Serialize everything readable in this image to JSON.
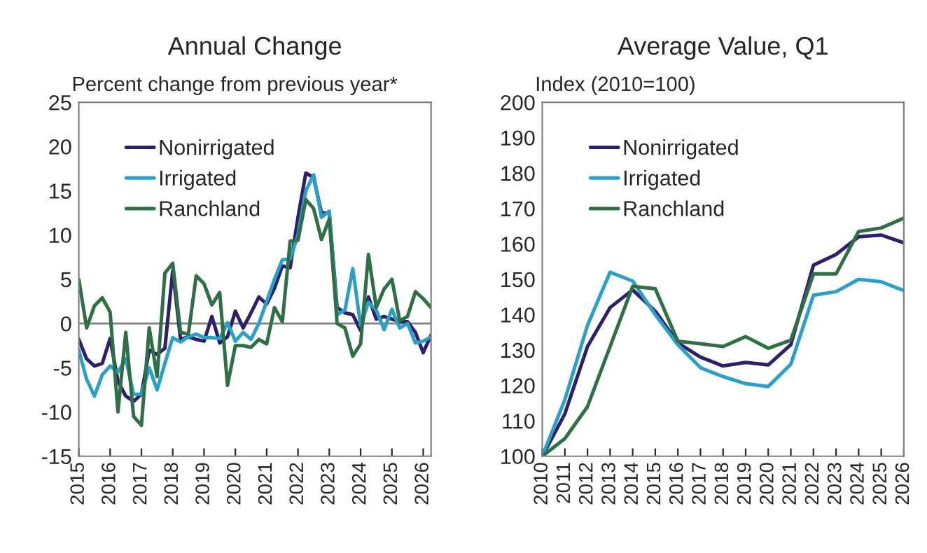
{
  "chart_data": [
    {
      "type": "line",
      "title": "Annual Change",
      "ylabel": "Percent change from previous year*",
      "x": [
        2015.0,
        2015.25,
        2015.5,
        2015.75,
        2016.0,
        2016.25,
        2016.5,
        2016.75,
        2017.0,
        2017.25,
        2017.5,
        2017.75,
        2018.0,
        2018.25,
        2018.5,
        2018.75,
        2019.0,
        2019.25,
        2019.5,
        2019.75,
        2020.0,
        2020.25,
        2020.5,
        2020.75,
        2021.0,
        2021.25,
        2021.5,
        2021.75,
        2022.0,
        2022.25,
        2022.5,
        2022.75,
        2023.0,
        2023.25,
        2023.5,
        2023.75,
        2024.0,
        2024.25,
        2024.5,
        2024.75,
        2025.0,
        2025.25,
        2025.5,
        2025.75,
        2026.0,
        2026.25
      ],
      "series": [
        {
          "name": "Nonirrigated",
          "color": "#2e1f6e",
          "values": [
            -1.8,
            -4.0,
            -4.8,
            -4.5,
            -1.7,
            -6.5,
            -8.2,
            -8.8,
            -8.0,
            -3.0,
            -3.5,
            -2.8,
            6.0,
            -1.8,
            -1.5,
            -1.8,
            -2.0,
            0.8,
            -2.2,
            -1.5,
            1.4,
            -0.5,
            1.2,
            3.0,
            2.2,
            4.0,
            6.5,
            6.3,
            12.0,
            17.0,
            16.5,
            12.5,
            12.5,
            1.8,
            1.2,
            1.0,
            -0.8,
            3.0,
            0.5,
            0.8,
            0.5,
            0.2,
            0.2,
            -1.0,
            -3.3,
            -1.3
          ]
        },
        {
          "name": "Irrigated",
          "color": "#2aa0c8",
          "values": [
            -3.0,
            -6.3,
            -8.2,
            -5.8,
            -4.8,
            -5.5,
            -4.0,
            -8.0,
            -8.0,
            -5.0,
            -7.5,
            -4.5,
            -1.6,
            -2.1,
            -1.5,
            -1.2,
            -1.6,
            -1.6,
            -1.7,
            0.1,
            -2.0,
            -1.0,
            -1.8,
            0.0,
            2.5,
            5.0,
            7.2,
            7.3,
            10.0,
            15.0,
            16.8,
            12.0,
            12.7,
            1.0,
            1.5,
            6.2,
            -0.2,
            2.4,
            1.5,
            -0.7,
            1.6,
            -0.5,
            0.0,
            -2.2,
            -2.0,
            -1.5
          ]
        },
        {
          "name": "Ranchland",
          "color": "#2e7045",
          "values": [
            5.0,
            -0.5,
            2.0,
            2.9,
            1.3,
            -10.0,
            -1.0,
            -10.5,
            -11.5,
            -0.5,
            -6.0,
            5.7,
            6.8,
            -1.0,
            -1.2,
            5.4,
            4.5,
            2.1,
            3.5,
            -7.0,
            -2.5,
            -2.5,
            -2.7,
            -1.8,
            -2.3,
            1.8,
            0.2,
            9.3,
            9.4,
            14.0,
            13.0,
            9.5,
            11.8,
            0.0,
            -0.5,
            -3.7,
            -2.3,
            7.8,
            1.8,
            3.9,
            5.0,
            0.3,
            0.8,
            3.6,
            2.8,
            1.8
          ]
        }
      ],
      "xlim": [
        2015,
        2026.25
      ],
      "xticks": [
        2015,
        2016,
        2017,
        2018,
        2019,
        2020,
        2021,
        2022,
        2023,
        2024,
        2025,
        2026
      ],
      "ylim": [
        -15,
        25
      ],
      "yticks": [
        -15,
        -10,
        -5,
        0,
        5,
        10,
        15,
        20,
        25
      ],
      "ref_lines": [
        {
          "axis": "y",
          "value": 0,
          "color": "#808080"
        }
      ],
      "legend": "top left",
      "grid": false
    },
    {
      "type": "line",
      "title": "Average Value, Q1",
      "ylabel": "Index (2010=100)",
      "x": [
        2010,
        2011,
        2012,
        2013,
        2014,
        2015,
        2016,
        2017,
        2018,
        2019,
        2020,
        2021,
        2022,
        2023,
        2024,
        2025,
        2026
      ],
      "series": [
        {
          "name": "Nonirrigated",
          "color": "#2e1f6e",
          "values": [
            100,
            112,
            131,
            142,
            147,
            141,
            132,
            128,
            125.5,
            126.5,
            125.8,
            131.5,
            154,
            157,
            162,
            162.5,
            160.3
          ]
        },
        {
          "name": "Irrigated",
          "color": "#2aa0c8",
          "values": [
            100,
            116,
            137,
            152,
            149.5,
            140,
            131.5,
            125,
            122.5,
            120.5,
            119.7,
            126,
            145.5,
            146.5,
            150,
            149.3,
            146.8
          ]
        },
        {
          "name": "Ranchland",
          "color": "#2e7045",
          "values": [
            100,
            105,
            114,
            131,
            148,
            147.3,
            132.5,
            131.8,
            131,
            133.8,
            130.5,
            132.8,
            151.5,
            151.5,
            163.5,
            164.5,
            167.3
          ]
        }
      ],
      "xlim": [
        2010,
        2026
      ],
      "xticks": [
        2010,
        2011,
        2012,
        2013,
        2014,
        2015,
        2016,
        2017,
        2018,
        2019,
        2020,
        2021,
        2022,
        2023,
        2024,
        2025,
        2026
      ],
      "ylim": [
        100,
        200
      ],
      "yticks": [
        100,
        110,
        120,
        130,
        140,
        150,
        160,
        170,
        180,
        190,
        200
      ],
      "legend": "top left",
      "grid": false
    }
  ]
}
